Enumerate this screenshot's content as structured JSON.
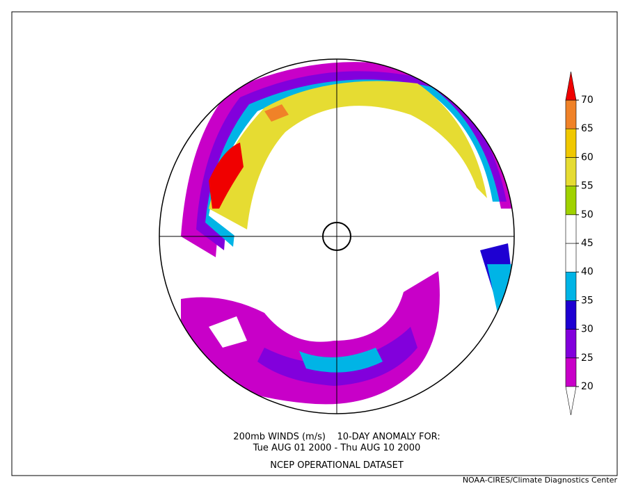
{
  "title_lines": [
    "200mb WINDS (m/s)    10-DAY ANOMALY FOR:",
    "Tue AUG 01 2000 - Thu AUG 10 2000"
  ],
  "dataset": "NCEP OPERATIONAL DATASET",
  "credit": "NOAA-CIRES/Climate Diagnostics Center",
  "colorbar": {
    "levels": [
      20,
      25,
      30,
      35,
      40,
      45,
      50,
      55,
      60,
      65,
      70
    ],
    "colors": [
      "#ffffff",
      "#c800c8",
      "#8200dc",
      "#1e00d2",
      "#00b4e6",
      "#ffffff",
      "#ffffff",
      "#a0d200",
      "#e6dc32",
      "#f0c800",
      "#f08228",
      "#f00000"
    ]
  }
}
